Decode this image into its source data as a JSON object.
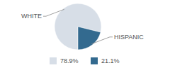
{
  "chart_data": {
    "type": "pie",
    "categories": [
      "WHITE",
      "HISPANIC"
    ],
    "values": [
      78.9,
      21.1
    ],
    "value_labels": [
      "78.9%",
      "21.1%"
    ],
    "colors": [
      "#d7dee7",
      "#336a8f"
    ],
    "legend": "bottom"
  }
}
